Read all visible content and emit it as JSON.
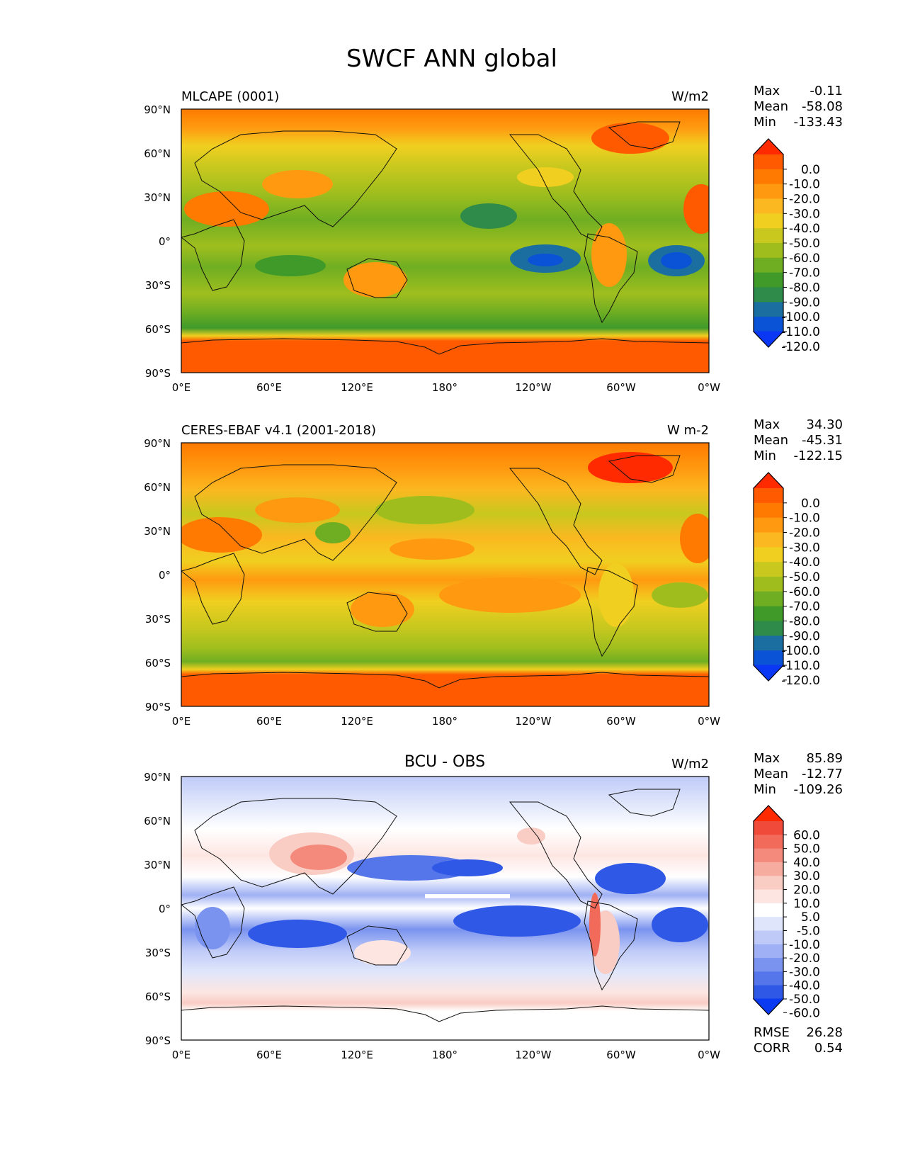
{
  "figure": {
    "title": "SWCF ANN global"
  },
  "chart_data": [
    {
      "type": "heatmap",
      "panel_title": "MLCAPE (0001)",
      "center_title": "",
      "units": "W/m2",
      "stats": {
        "max_label": "Max",
        "max": "-0.11",
        "mean_label": "Mean",
        "mean": "-58.08",
        "min_label": "Min",
        "min": "-133.43"
      },
      "x_ticks": [
        "0°E",
        "60°E",
        "120°E",
        "180°",
        "120°W",
        "60°W",
        "0°W"
      ],
      "y_ticks": [
        "90°N",
        "60°N",
        "30°N",
        "0°",
        "30°S",
        "60°S",
        "90°S"
      ],
      "colorbar": {
        "labels": [
          "0.0",
          "-10.0",
          "-20.0",
          "-30.0",
          "-40.0",
          "-50.0",
          "-60.0",
          "-70.0",
          "-80.0",
          "-90.0",
          "-100.0",
          "-110.0",
          "-120.0"
        ],
        "colors": [
          "#ff2a00",
          "#ff5a00",
          "#ff7a00",
          "#ff9a10",
          "#fbb820",
          "#f0cf20",
          "#c8c81e",
          "#9fbe1e",
          "#6fae22",
          "#3f9a2a",
          "#2e8b4a",
          "#1a6fa0",
          "#0a52d6",
          "#0a37f4"
        ]
      }
    },
    {
      "type": "heatmap",
      "panel_title": "CERES-EBAF v4.1 (2001-2018)",
      "center_title": "",
      "units": "W m-2",
      "stats": {
        "max_label": "Max",
        "max": "34.30",
        "mean_label": "Mean",
        "mean": "-45.31",
        "min_label": "Min",
        "min": "-122.15"
      },
      "x_ticks": [
        "0°E",
        "60°E",
        "120°E",
        "180°",
        "120°W",
        "60°W",
        "0°W"
      ],
      "y_ticks": [
        "90°N",
        "60°N",
        "30°N",
        "0°",
        "30°S",
        "60°S",
        "90°S"
      ],
      "colorbar": {
        "labels": [
          "0.0",
          "-10.0",
          "-20.0",
          "-30.0",
          "-40.0",
          "-50.0",
          "-60.0",
          "-70.0",
          "-80.0",
          "-90.0",
          "-100.0",
          "-110.0",
          "-120.0"
        ],
        "colors": [
          "#ff2a00",
          "#ff5a00",
          "#ff7a00",
          "#ff9a10",
          "#fbb820",
          "#f0cf20",
          "#c8c81e",
          "#9fbe1e",
          "#6fae22",
          "#3f9a2a",
          "#2e8b4a",
          "#1a6fa0",
          "#0a52d6",
          "#0a37f4"
        ]
      }
    },
    {
      "type": "heatmap",
      "panel_title": "",
      "center_title": "BCU - OBS",
      "units": "W/m2",
      "stats": {
        "max_label": "Max",
        "max": "85.89",
        "mean_label": "Mean",
        "mean": "-12.77",
        "min_label": "Min",
        "min": "-109.26"
      },
      "extra_stats": {
        "rmse_label": "RMSE",
        "rmse": "26.28",
        "corr_label": "CORR",
        "corr": "0.54"
      },
      "x_ticks": [
        "0°E",
        "60°E",
        "120°E",
        "180°",
        "120°W",
        "60°W",
        "0°W"
      ],
      "y_ticks": [
        "90°N",
        "60°N",
        "30°N",
        "0°",
        "30°S",
        "60°S",
        "90°S"
      ],
      "colorbar": {
        "labels": [
          "60.0",
          "50.0",
          "40.0",
          "30.0",
          "20.0",
          "10.0",
          "5.0",
          "-5.0",
          "-10.0",
          "-20.0",
          "-30.0",
          "-40.0",
          "-50.0",
          "-60.0"
        ],
        "colors": [
          "#ff2a00",
          "#f04a3a",
          "#f26a5a",
          "#f48a7c",
          "#f7aca0",
          "#f9ccc4",
          "#fde6e2",
          "#ffffff",
          "#dfe6fb",
          "#bfcaf8",
          "#9fb0f4",
          "#7a93ef",
          "#5576ea",
          "#2f58e6",
          "#0a3af2"
        ]
      }
    }
  ]
}
